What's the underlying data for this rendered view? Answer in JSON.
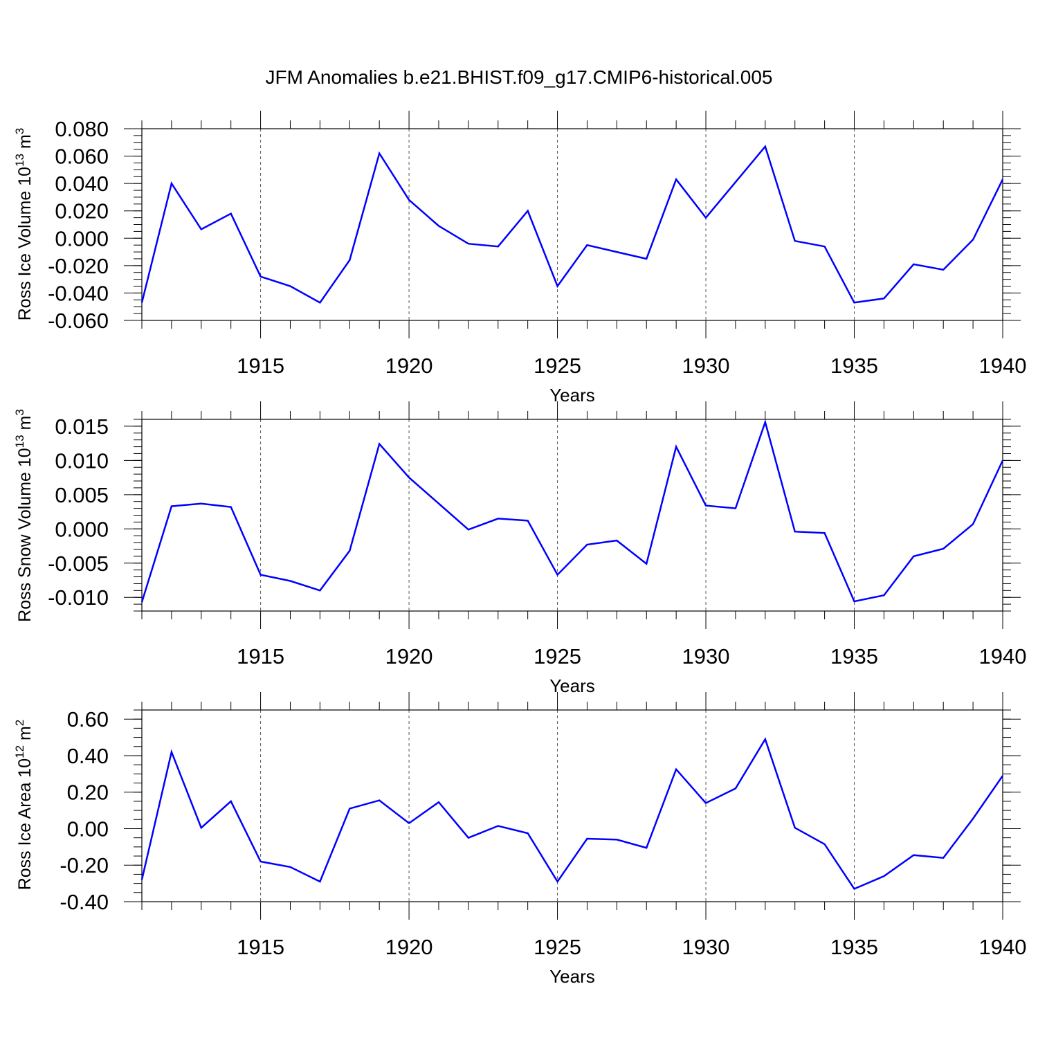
{
  "figure": {
    "title": "JFM Anomalies b.e21.BHIST.f09_g17.CMIP6-historical.005",
    "line_color": "#0000ff"
  },
  "chart_data": [
    {
      "type": "line",
      "title": "",
      "xlabel": "Years",
      "ylabel": {
        "base": "Ross Ice Volume 10",
        "sup1": "13",
        "unit": " m",
        "sup2": "3"
      },
      "x": [
        1911,
        1912,
        1913,
        1914,
        1915,
        1916,
        1917,
        1918,
        1919,
        1920,
        1921,
        1922,
        1923,
        1924,
        1925,
        1926,
        1927,
        1928,
        1929,
        1930,
        1931,
        1932,
        1933,
        1934,
        1935,
        1936,
        1937,
        1938,
        1939,
        1940
      ],
      "values": [
        -0.047,
        0.04,
        0.0065,
        0.018,
        -0.028,
        -0.035,
        -0.047,
        -0.016,
        0.062,
        0.028,
        0.009,
        -0.004,
        -0.006,
        0.02,
        -0.035,
        -0.005,
        -0.01,
        -0.015,
        0.043,
        0.015,
        0.041,
        0.067,
        -0.002,
        -0.006,
        -0.047,
        -0.044,
        -0.019,
        -0.023,
        -0.001,
        0.043
      ],
      "xlim": [
        1911,
        1940
      ],
      "ylim": [
        -0.06,
        0.08
      ],
      "xticks": [
        1915,
        1920,
        1925,
        1930,
        1935,
        1940
      ],
      "xtick_labels": [
        "1915",
        "1920",
        "1925",
        "1930",
        "1935",
        "1940"
      ],
      "yticks": [
        -0.06,
        -0.04,
        -0.02,
        0.0,
        0.02,
        0.04,
        0.06,
        0.08
      ],
      "ytick_labels": [
        "-0.060",
        "-0.040",
        "-0.020",
        "0.000",
        "0.020",
        "0.040",
        "0.060",
        "0.080"
      ],
      "yminor_step": 0.005,
      "grid": "dashed vertical at major x ticks"
    },
    {
      "type": "line",
      "title": "",
      "xlabel": "Years",
      "ylabel": {
        "base": "Ross Snow Volume 10",
        "sup1": "13",
        "unit": " m",
        "sup2": "3"
      },
      "x": [
        1911,
        1912,
        1913,
        1914,
        1915,
        1916,
        1917,
        1918,
        1919,
        1920,
        1921,
        1922,
        1923,
        1924,
        1925,
        1926,
        1927,
        1928,
        1929,
        1930,
        1931,
        1932,
        1933,
        1934,
        1935,
        1936,
        1937,
        1938,
        1939,
        1940
      ],
      "values": [
        -0.0107,
        0.0033,
        0.0037,
        0.0032,
        -0.0067,
        -0.0076,
        -0.009,
        -0.0032,
        0.0124,
        0.0075,
        0.0037,
        -0.0001,
        0.0015,
        0.0012,
        -0.0067,
        -0.0023,
        -0.0017,
        -0.0051,
        0.012,
        0.0034,
        0.003,
        0.0156,
        -0.0004,
        -0.0006,
        -0.0106,
        -0.0097,
        -0.004,
        -0.0029,
        0.0007,
        0.01
      ],
      "xlim": [
        1911,
        1940
      ],
      "ylim": [
        -0.012,
        0.016
      ],
      "xticks": [
        1915,
        1920,
        1925,
        1930,
        1935,
        1940
      ],
      "xtick_labels": [
        "1915",
        "1920",
        "1925",
        "1930",
        "1935",
        "1940"
      ],
      "yticks": [
        -0.01,
        -0.005,
        0.0,
        0.005,
        0.01,
        0.015
      ],
      "ytick_labels": [
        "-0.010",
        "-0.005",
        "0.000",
        "0.005",
        "0.010",
        "0.015"
      ],
      "yminor_step": 0.001,
      "grid": "dashed vertical at major x ticks"
    },
    {
      "type": "line",
      "title": "",
      "xlabel": "Years",
      "ylabel": {
        "base": "Ross Ice Area 10",
        "sup1": "12",
        "unit": " m",
        "sup2": "2"
      },
      "x": [
        1911,
        1912,
        1913,
        1914,
        1915,
        1916,
        1917,
        1918,
        1919,
        1920,
        1921,
        1922,
        1923,
        1924,
        1925,
        1926,
        1927,
        1928,
        1929,
        1930,
        1931,
        1932,
        1933,
        1934,
        1935,
        1936,
        1937,
        1938,
        1939,
        1940
      ],
      "values": [
        -0.28,
        0.42,
        0.005,
        0.15,
        -0.18,
        -0.21,
        -0.29,
        0.11,
        0.155,
        0.03,
        0.145,
        -0.05,
        0.015,
        -0.025,
        -0.29,
        -0.055,
        -0.06,
        -0.105,
        0.325,
        0.14,
        0.22,
        0.49,
        0.005,
        -0.085,
        -0.33,
        -0.26,
        -0.145,
        -0.16,
        0.055,
        0.29
      ],
      "xlim": [
        1911,
        1940
      ],
      "ylim": [
        -0.4,
        0.65
      ],
      "xticks": [
        1915,
        1920,
        1925,
        1930,
        1935,
        1940
      ],
      "xtick_labels": [
        "1915",
        "1920",
        "1925",
        "1930",
        "1935",
        "1940"
      ],
      "yticks": [
        -0.4,
        -0.2,
        0.0,
        0.2,
        0.4,
        0.6
      ],
      "ytick_labels": [
        "-0.40",
        "-0.20",
        "0.00",
        "0.20",
        "0.40",
        "0.60"
      ],
      "yminor_step": 0.05,
      "grid": "dashed vertical at major x ticks"
    }
  ]
}
